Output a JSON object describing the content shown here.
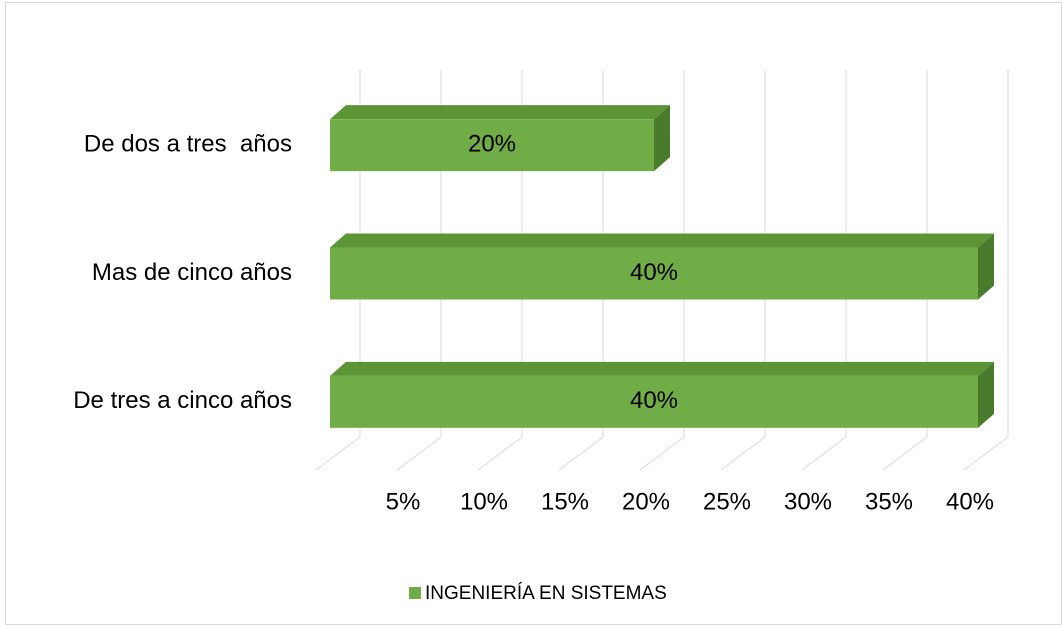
{
  "chart_data": {
    "type": "bar3d_horizontal",
    "categories": [
      "De dos a tres  años",
      "Mas de cinco años",
      "De tres a cinco años"
    ],
    "series": [
      {
        "name": "INGENIERÍA EN SISTEMAS",
        "color": "#70ad47",
        "values": [
          20,
          40,
          40
        ],
        "value_labels": [
          "20%",
          "40%",
          "40%"
        ]
      }
    ],
    "xlim": [
      0,
      40
    ],
    "xticks": [
      {
        "value": 5,
        "label": "5%"
      },
      {
        "value": 10,
        "label": "10%"
      },
      {
        "value": 15,
        "label": "15%"
      },
      {
        "value": 20,
        "label": "20%"
      },
      {
        "value": 25,
        "label": "25%"
      },
      {
        "value": 30,
        "label": "30%"
      },
      {
        "value": 35,
        "label": "35%"
      },
      {
        "value": 40,
        "label": "40%"
      }
    ],
    "grid": true,
    "legend": "bottom"
  }
}
